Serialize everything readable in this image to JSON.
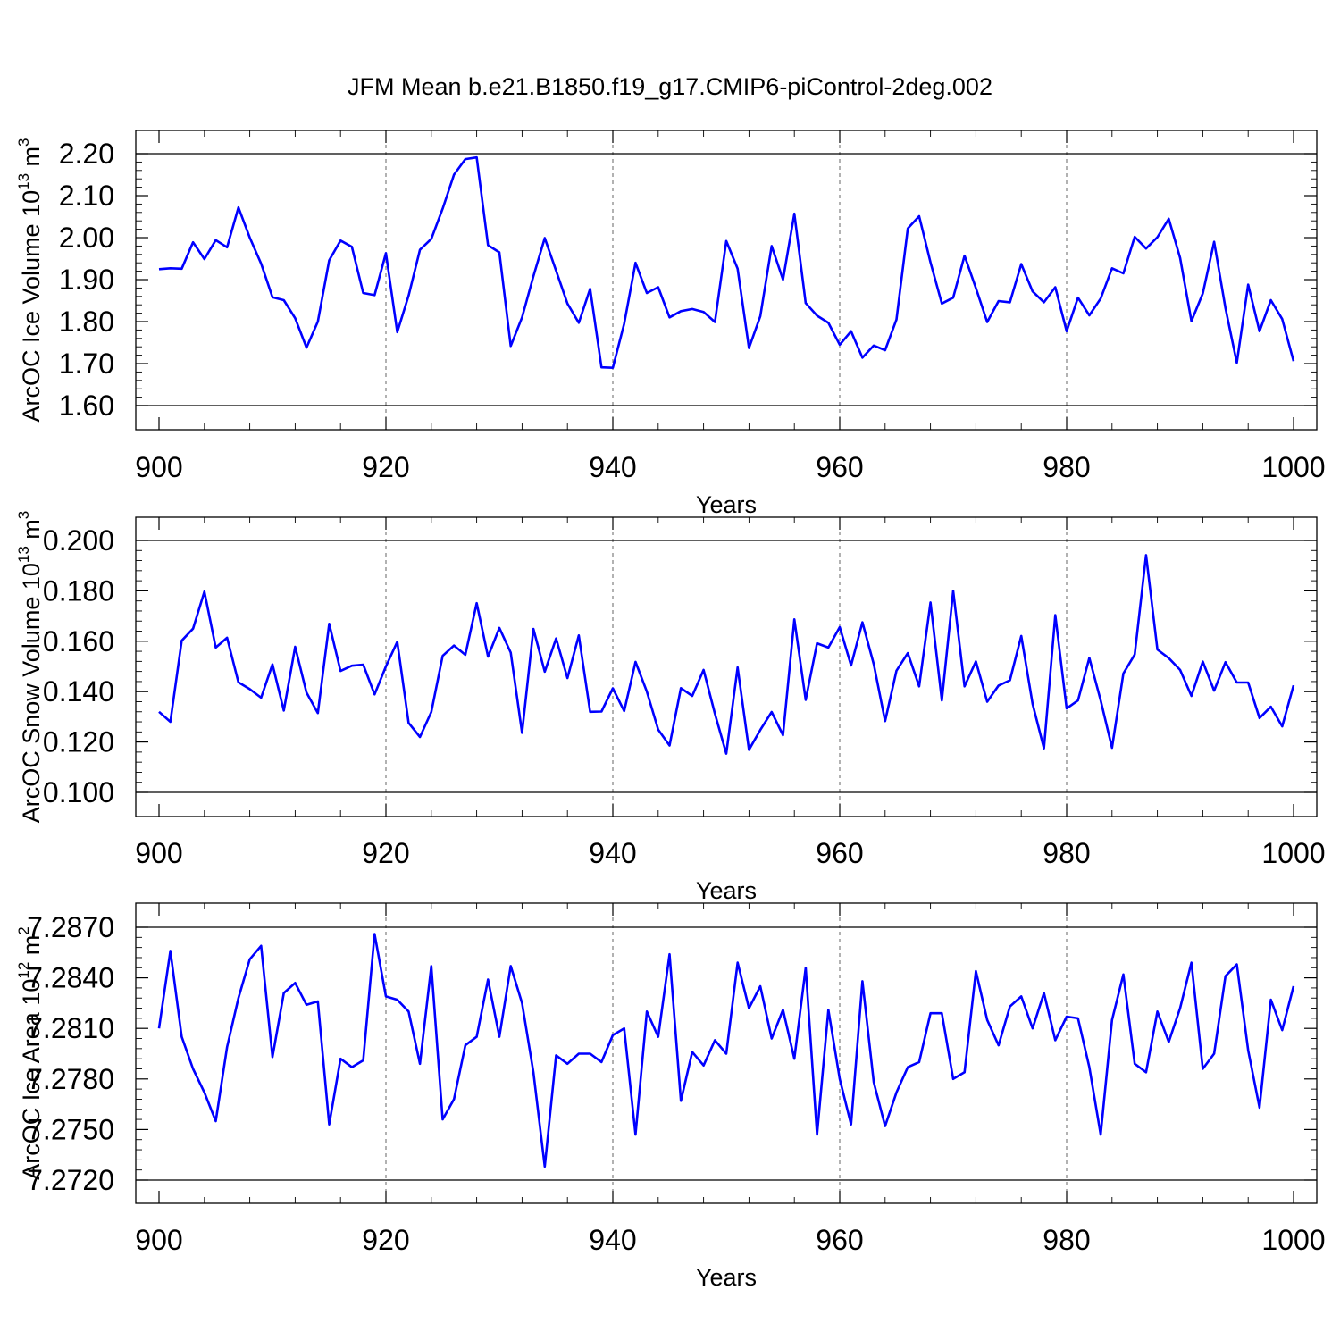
{
  "title": "JFM Mean b.e21.B1850.f19_g17.CMIP6-piControl-2deg.002",
  "colors": {
    "series": "#0000ff",
    "axes": "#000000",
    "grid": "#666666"
  },
  "chart_data": [
    {
      "type": "line",
      "xlabel": "Years",
      "ylabel": "ArcOC Ice Volume 10",
      "ylabel_exp": "13",
      "ylabel_unit": " m",
      "ylabel_unit_exp": "3",
      "xlim": [
        900,
        1000
      ],
      "ylim": [
        1.6,
        2.2
      ],
      "xticks": [
        900,
        920,
        940,
        960,
        980,
        1000
      ],
      "xtick_labels": [
        "900",
        "920",
        "940",
        "960",
        "980",
        "1000"
      ],
      "yticks": [
        1.6,
        1.7,
        1.8,
        1.9,
        2.0,
        2.1,
        2.2
      ],
      "ytick_labels": [
        "1.60",
        "1.70",
        "1.80",
        "1.90",
        "2.00",
        "2.10",
        "2.20"
      ],
      "grid": "vertical dashed at major x ticks",
      "x_start": 900,
      "values": [
        1.925,
        1.927,
        1.926,
        1.989,
        1.949,
        1.994,
        1.977,
        2.072,
        2.0,
        1.938,
        1.858,
        1.851,
        1.808,
        1.738,
        1.8,
        1.946,
        1.993,
        1.978,
        1.868,
        1.863,
        1.963,
        1.775,
        1.862,
        1.971,
        1.997,
        2.069,
        2.15,
        2.187,
        2.191,
        1.982,
        1.965,
        1.742,
        1.81,
        1.908,
        1.999,
        1.921,
        1.843,
        1.797,
        1.878,
        1.691,
        1.69,
        1.795,
        1.94,
        1.868,
        1.882,
        1.81,
        1.825,
        1.83,
        1.823,
        1.799,
        1.992,
        1.926,
        1.737,
        1.813,
        1.98,
        1.9,
        2.057,
        1.844,
        1.814,
        1.797,
        1.745,
        1.777,
        1.714,
        1.743,
        1.732,
        1.805,
        2.022,
        2.051,
        1.941,
        1.843,
        1.857,
        1.957,
        1.88,
        1.799,
        1.849,
        1.846,
        1.937,
        1.872,
        1.846,
        1.882,
        1.777,
        1.857,
        1.815,
        1.855,
        1.927,
        1.915,
        2.002,
        1.974,
        2.001,
        2.045,
        1.952,
        1.801,
        1.867,
        1.99,
        1.832,
        1.702,
        1.888,
        1.777,
        1.851,
        1.806,
        1.706
      ]
    },
    {
      "type": "line",
      "xlabel": "Years",
      "ylabel": "ArcOC Snow Volume 10",
      "ylabel_exp": "13",
      "ylabel_unit": " m",
      "ylabel_unit_exp": "3",
      "xlim": [
        900,
        1000
      ],
      "ylim": [
        0.1,
        0.2
      ],
      "xticks": [
        900,
        920,
        940,
        960,
        980,
        1000
      ],
      "xtick_labels": [
        "900",
        "920",
        "940",
        "960",
        "980",
        "1000"
      ],
      "yticks": [
        0.1,
        0.12,
        0.14,
        0.16,
        0.18,
        0.2
      ],
      "ytick_labels": [
        "0.100",
        "0.120",
        "0.140",
        "0.160",
        "0.180",
        "0.200"
      ],
      "grid": "vertical dashed at major x ticks",
      "x_start": 900,
      "values": [
        0.132,
        0.128,
        0.1602,
        0.165,
        0.1797,
        0.1575,
        0.1614,
        0.1437,
        0.141,
        0.1376,
        0.1508,
        0.1325,
        0.1578,
        0.1396,
        0.1315,
        0.1669,
        0.1482,
        0.1503,
        0.1507,
        0.1389,
        0.15,
        0.1598,
        0.1276,
        0.122,
        0.1319,
        0.1542,
        0.1583,
        0.1546,
        0.1751,
        0.1539,
        0.1653,
        0.1555,
        0.1236,
        0.1649,
        0.1479,
        0.1611,
        0.1454,
        0.1623,
        0.132,
        0.1321,
        0.1413,
        0.1323,
        0.1518,
        0.14,
        0.1249,
        0.1186,
        0.1414,
        0.1383,
        0.1486,
        0.1312,
        0.1154,
        0.1496,
        0.1169,
        0.1248,
        0.1319,
        0.1227,
        0.1687,
        0.1367,
        0.1592,
        0.1575,
        0.1656,
        0.1504,
        0.1675,
        0.1509,
        0.1283,
        0.1483,
        0.1553,
        0.1421,
        0.1754,
        0.1365,
        0.18,
        0.1421,
        0.152,
        0.136,
        0.1424,
        0.1445,
        0.1621,
        0.1351,
        0.1175,
        0.1704,
        0.1333,
        0.1365,
        0.1534,
        0.1365,
        0.1177,
        0.1472,
        0.1547,
        0.1942,
        0.1567,
        0.1533,
        0.1486,
        0.1383,
        0.1519,
        0.1404,
        0.1517,
        0.1436,
        0.1436,
        0.1295,
        0.134,
        0.1262,
        0.1425
      ]
    },
    {
      "type": "line",
      "xlabel": "Years",
      "ylabel": "ArcOC Ice Area 10",
      "ylabel_exp": "12",
      "ylabel_unit": " m",
      "ylabel_unit_exp": "2",
      "xlim": [
        900,
        1000
      ],
      "ylim": [
        7.272,
        7.287
      ],
      "xticks": [
        900,
        920,
        940,
        960,
        980,
        1000
      ],
      "xtick_labels": [
        "900",
        "920",
        "940",
        "960",
        "980",
        "1000"
      ],
      "yticks": [
        7.272,
        7.275,
        7.278,
        7.281,
        7.284,
        7.287
      ],
      "ytick_labels": [
        "7.2720",
        "7.2750",
        "7.2780",
        "7.2810",
        "7.2840",
        "7.2870"
      ],
      "grid": "vertical dashed at major x ticks",
      "x_start": 900,
      "values": [
        7.281,
        7.2856,
        7.2805,
        7.2786,
        7.2772,
        7.2755,
        7.2799,
        7.2828,
        7.2851,
        7.2859,
        7.2793,
        7.2831,
        7.2837,
        7.2824,
        7.2826,
        7.2753,
        7.2792,
        7.2787,
        7.2791,
        7.2866,
        7.2829,
        7.2827,
        7.282,
        7.2789,
        7.2847,
        7.2756,
        7.2768,
        7.28,
        7.2805,
        7.2839,
        7.2805,
        7.2847,
        7.2825,
        7.2784,
        7.2728,
        7.2794,
        7.2789,
        7.2795,
        7.2795,
        7.279,
        7.2806,
        7.281,
        7.2747,
        7.282,
        7.2805,
        7.2854,
        7.2767,
        7.2796,
        7.2788,
        7.2803,
        7.2795,
        7.2849,
        7.2822,
        7.2835,
        7.2804,
        7.2821,
        7.2792,
        7.2846,
        7.2747,
        7.2821,
        7.278,
        7.2753,
        7.2838,
        7.2778,
        7.2752,
        7.2772,
        7.2787,
        7.279,
        7.2819,
        7.2819,
        7.278,
        7.2784,
        7.2844,
        7.2815,
        7.28,
        7.2823,
        7.2829,
        7.281,
        7.2831,
        7.2803,
        7.2817,
        7.2816,
        7.2787,
        7.2747,
        7.2815,
        7.2842,
        7.2789,
        7.2784,
        7.282,
        7.2802,
        7.2822,
        7.2849,
        7.2786,
        7.2795,
        7.2841,
        7.2848,
        7.2797,
        7.2763,
        7.2827,
        7.2809,
        7.2835
      ]
    }
  ]
}
